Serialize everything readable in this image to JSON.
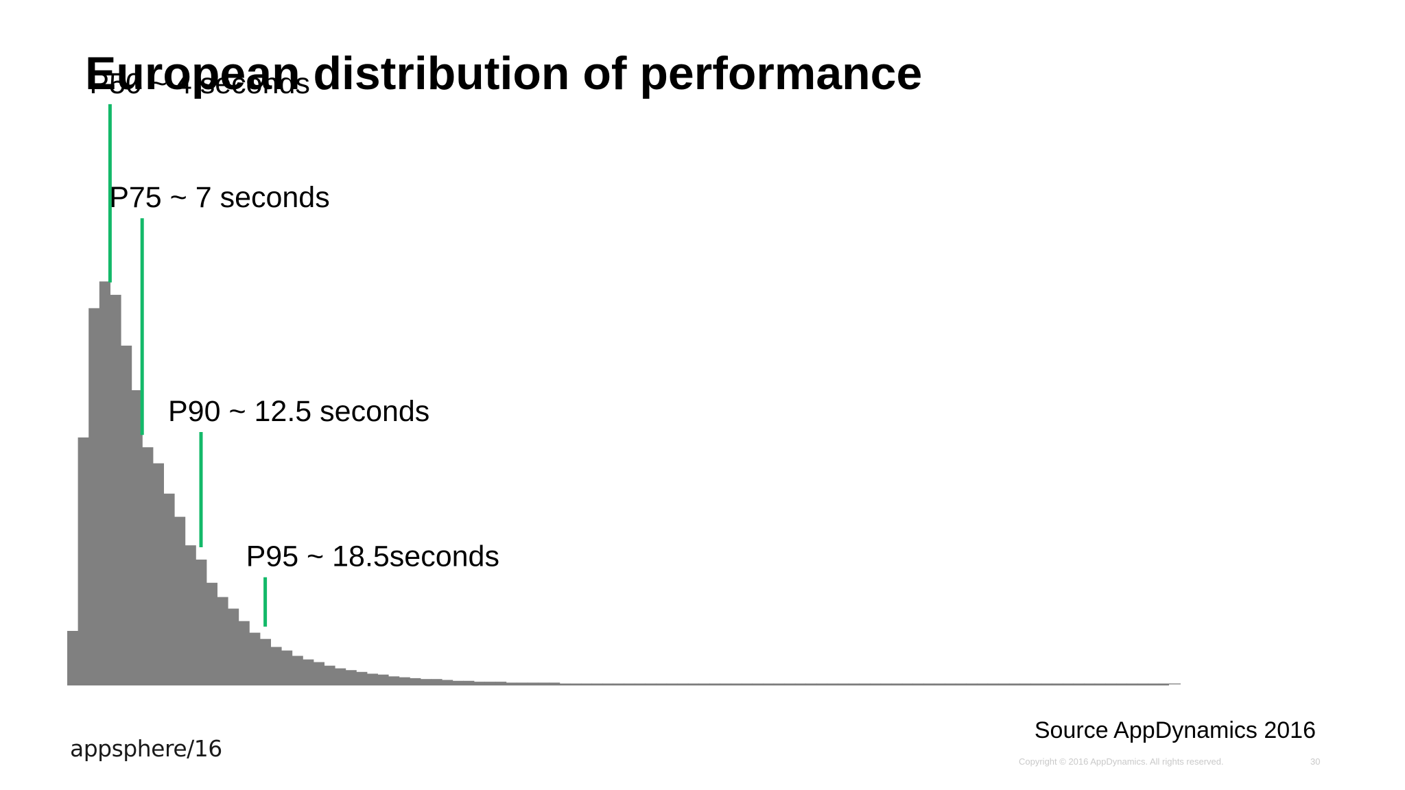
{
  "slide": {
    "title": "European distribution of performance",
    "source": "Source AppDynamics 2016",
    "copyright": "Copyright © 2016 AppDynamics. All rights reserved.",
    "page_number": "30",
    "logo_text": "appsphere/16"
  },
  "colors": {
    "bars": "#808080",
    "markers": "#13b969",
    "baseline": "#7a7a7a",
    "text": "#000000"
  },
  "chart_data": {
    "type": "bar",
    "title": "European distribution of performance",
    "xlabel": "",
    "ylabel": "",
    "x_unit": "seconds",
    "bin_width": 1,
    "grid": false,
    "legend": "none",
    "values": [
      60,
      277,
      422,
      452,
      437,
      380,
      330,
      266,
      248,
      214,
      188,
      156,
      140,
      114,
      98,
      85,
      71,
      58,
      51,
      42,
      38,
      32,
      28,
      25,
      21,
      18,
      16,
      14,
      12,
      11,
      9,
      8,
      7,
      6,
      6,
      5,
      4,
      4,
      3,
      3,
      3,
      2,
      2,
      2,
      2,
      2,
      1,
      1,
      1,
      1,
      1,
      1,
      1,
      1,
      1,
      1,
      1,
      1,
      1,
      1,
      1,
      1,
      1,
      1,
      1,
      1,
      1,
      1,
      1,
      1,
      1,
      1,
      1,
      1,
      1,
      1,
      1,
      1,
      1,
      1,
      1,
      1,
      1,
      1,
      1,
      1,
      1,
      1,
      1,
      1,
      1,
      1,
      1,
      1,
      1,
      1,
      1,
      1,
      1,
      1,
      1,
      1,
      1,
      1
    ],
    "percentiles": [
      {
        "label": "P50 ~ 4 seconds",
        "x": 4,
        "level": 260
      },
      {
        "label": "P75 ~ 7 seconds",
        "x": 7,
        "level": 316
      },
      {
        "label": "P90 ~ 12.5 seconds",
        "x": 12.5,
        "level": 168
      },
      {
        "label": "P95 ~ 18.5seconds",
        "x": 18.5,
        "level": 72
      }
    ]
  }
}
